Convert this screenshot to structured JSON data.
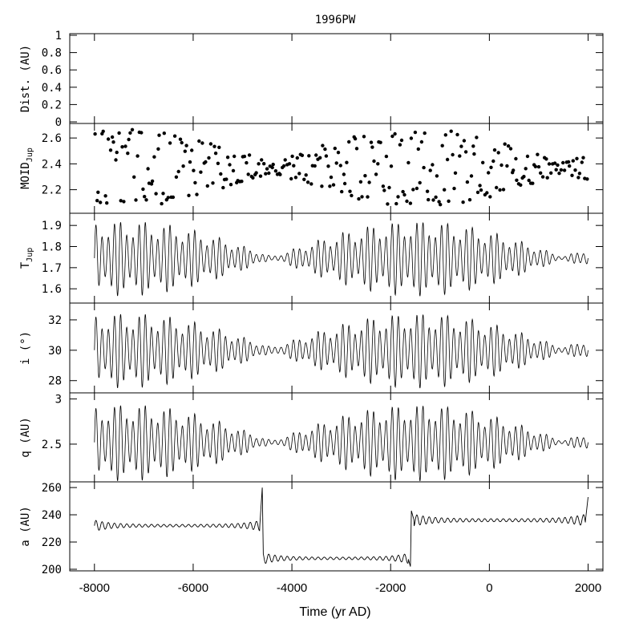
{
  "chart_data": {
    "type": "line",
    "title": "1996PW",
    "xlabel": "Time (yr AD)",
    "xlim": [
      -8500,
      2300
    ],
    "xticks": [
      -8000,
      -6000,
      -4000,
      -2000,
      0,
      2000
    ],
    "xtick_labels": [
      "-8000",
      "-6000",
      "-4000",
      "-2000",
      "0",
      "2000"
    ],
    "panels": [
      {
        "id": "dist",
        "ylabel": "Dist. (AU)",
        "ylim": [
          0,
          1
        ],
        "yticks": [
          0,
          0.2,
          0.4,
          0.6,
          0.8,
          1
        ],
        "ytick_labels": [
          "0",
          "0.2",
          "0.4",
          "0.6",
          "0.8",
          "1"
        ],
        "style": "none",
        "values": []
      },
      {
        "id": "moid",
        "ylabel": "MOID",
        "ylabel_sub": "Jup",
        "ylim": [
          2.03,
          2.7
        ],
        "yticks": [
          2.2,
          2.4,
          2.6
        ],
        "ytick_labels": [
          "2.2",
          "2.4",
          "2.6"
        ],
        "style": "scatter",
        "x_start": -8000,
        "x_end": 2000,
        "count": 290,
        "center": 2.37,
        "envelope_amplitude": [
          0.04,
          0.31
        ],
        "envelope_period": 5900,
        "envelope_phase_year": -4400
      },
      {
        "id": "tjup",
        "ylabel": "T",
        "ylabel_sub": "Jup",
        "ylim": [
          1.54,
          1.95
        ],
        "yticks": [
          1.6,
          1.7,
          1.8,
          1.9
        ],
        "ytick_labels": [
          "1.6",
          "1.7",
          "1.8",
          "1.9"
        ],
        "style": "oscillation",
        "center": 1.745,
        "envelope_amplitude": [
          0.008,
          0.18
        ],
        "oscillation_period": 125,
        "envelope_period": 5900,
        "envelope_phase_year": -4400
      },
      {
        "id": "incl",
        "ylabel": "i (°)",
        "ylim": [
          27.3,
          33
        ],
        "yticks": [
          28,
          30,
          32
        ],
        "ytick_labels": [
          "28",
          "30",
          "32"
        ],
        "style": "oscillation",
        "center": 30,
        "envelope_amplitude": [
          0.2,
          2.5
        ],
        "oscillation_period": 125,
        "envelope_period": 5900,
        "envelope_phase_year": -4400
      },
      {
        "id": "q",
        "ylabel": "q (AU)",
        "ylim": [
          2.1,
          3.05
        ],
        "yticks": [
          2.5,
          3
        ],
        "ytick_labels": [
          "2.5",
          "3"
        ],
        "style": "oscillation",
        "center": 2.52,
        "envelope_amplitude": [
          0.02,
          0.43
        ],
        "oscillation_period": 125,
        "envelope_period": 5900,
        "envelope_phase_year": -4400
      },
      {
        "id": "a",
        "ylabel": "a (AU)",
        "ylim": [
          200,
          263
        ],
        "yticks": [
          200,
          220,
          240,
          260
        ],
        "ytick_labels": [
          "200",
          "220",
          "240",
          "260"
        ],
        "style": "step-oscillation",
        "oscillation_period": 125,
        "segments": [
          {
            "x_start": -8000,
            "x_end": -4600,
            "level": 232,
            "edge_amplitude": 2.5,
            "end_value": 260
          },
          {
            "x_start": -4580,
            "x_end": -1600,
            "level": 208,
            "edge_amplitude": 2.5,
            "end_value": 202
          },
          {
            "x_start": -1580,
            "x_end": 2000,
            "level": 236,
            "edge_amplitude": 3,
            "start_value": 243,
            "end_value": 253
          }
        ]
      }
    ]
  }
}
